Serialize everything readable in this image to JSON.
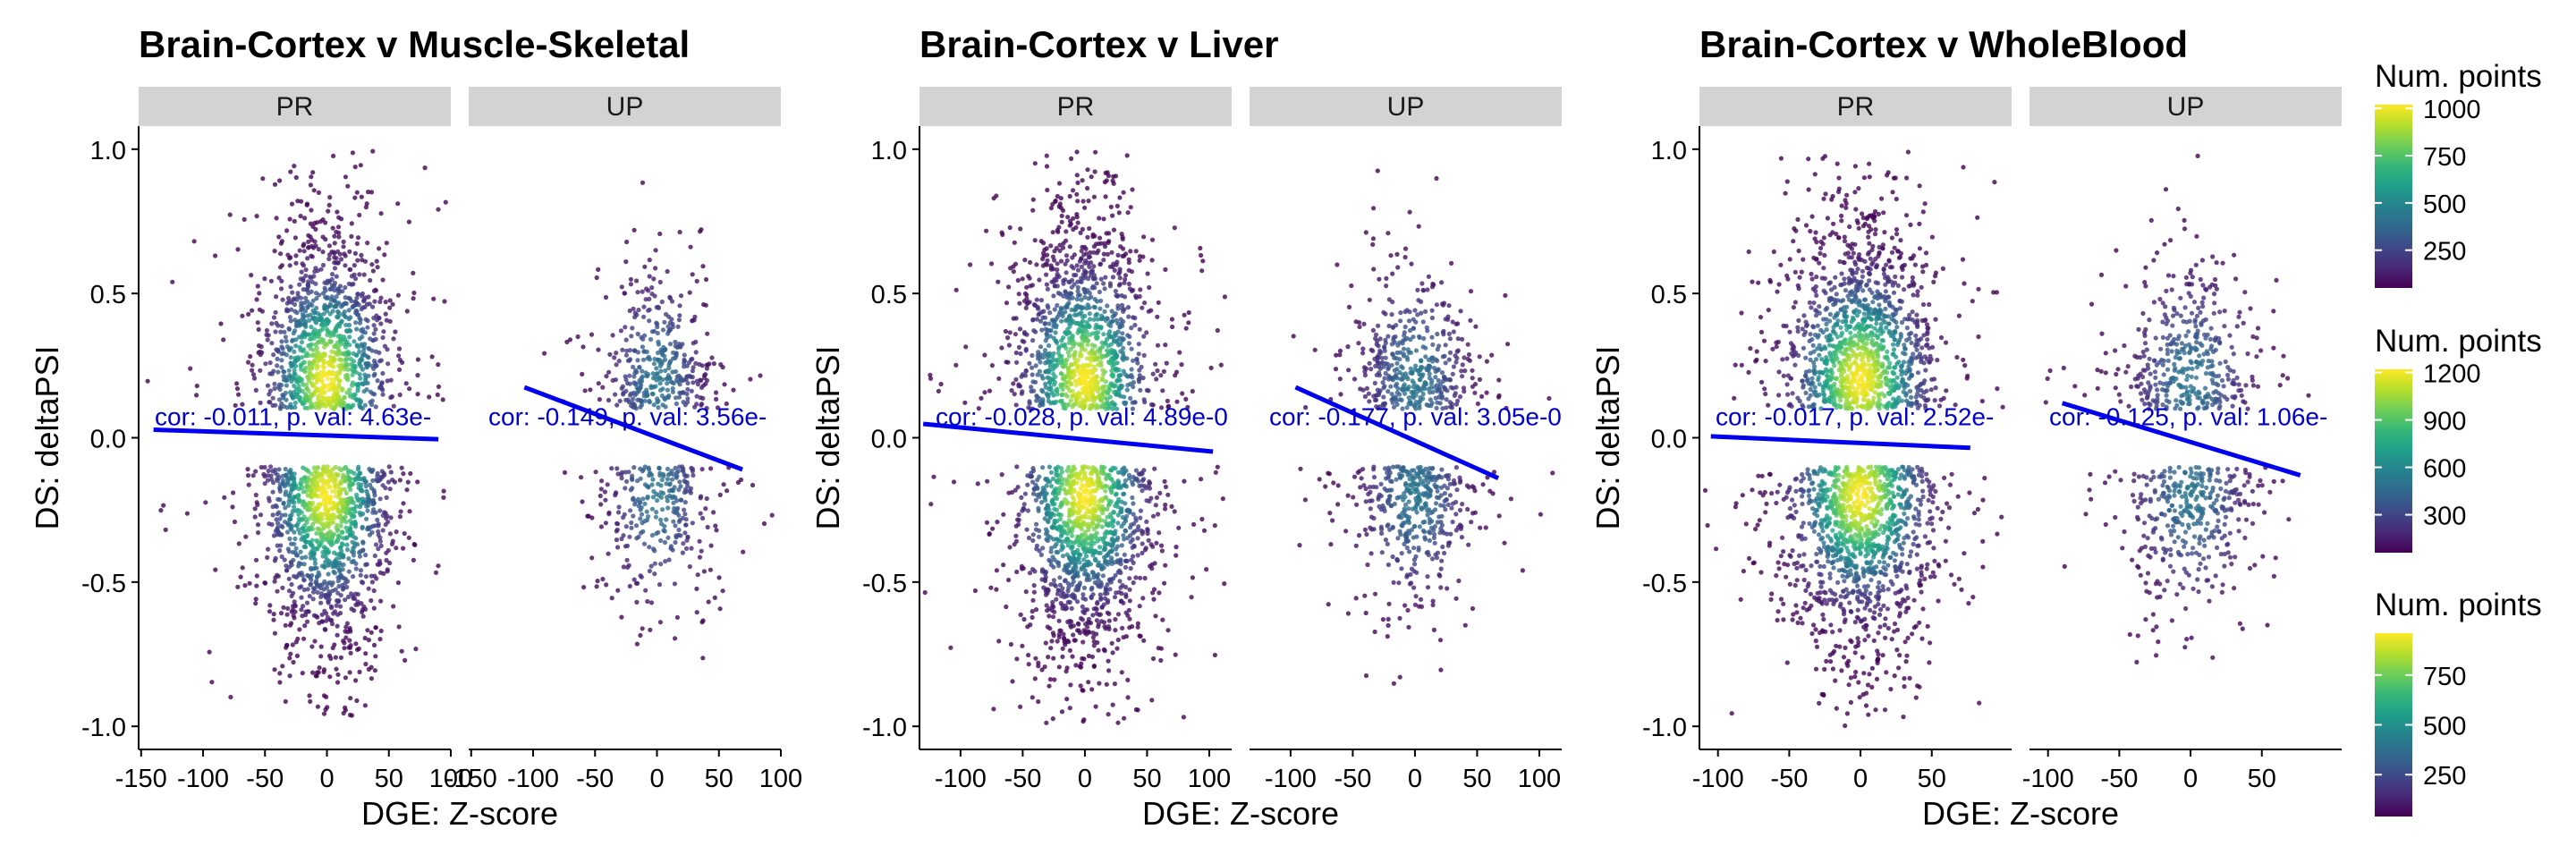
{
  "chart_data": [
    {
      "type": "scatter",
      "title": "Brain-Cortex v Muscle-Skeletal",
      "xlabel": "DGE: Z-score",
      "ylabel": "DS: deltaPSI",
      "ylim": [
        -1.08,
        1.08
      ],
      "yticks": [
        -1.0,
        -0.5,
        0.0,
        0.5,
        1.0
      ],
      "ytick_labels": [
        "-1.0",
        "-0.5",
        "0.0",
        "0.5",
        "1.0"
      ],
      "legend": {
        "title": "Num. points",
        "ticks": [
          250,
          500,
          750,
          1000
        ],
        "range": [
          50,
          1020
        ]
      },
      "panels": [
        {
          "strip": "PR",
          "xlim": [
            -152,
            100
          ],
          "xticks": [
            -150,
            -100,
            -50,
            0,
            50,
            100
          ],
          "xtick_labels": [
            "-150",
            "-100",
            "-50",
            "0",
            "50",
            "100"
          ],
          "cloud_sd_x": 25,
          "n_points": 2300,
          "fit": {
            "x": [
              -140,
              90
            ],
            "y": [
              0.028,
              -0.005
            ]
          },
          "annotation": "cor: -0.011, p. val: 4.63e-"
        },
        {
          "strip": "UP",
          "xlim": [
            -152,
            100
          ],
          "xticks": [
            -150,
            -100,
            -50,
            0,
            50,
            100
          ],
          "xtick_labels": [
            "-150",
            "-100",
            "-50",
            "0",
            "50",
            "100"
          ],
          "cloud_sd_x": 22,
          "n_points": 700,
          "fit": {
            "x": [
              -107,
              69
            ],
            "y": [
              0.175,
              -0.11
            ]
          },
          "annotation": "cor: -0.149, p. val: 3.56e-"
        }
      ]
    },
    {
      "type": "scatter",
      "title": "Brain-Cortex v Liver",
      "xlabel": "DGE: Z-score",
      "ylabel": "DS: deltaPSI",
      "ylim": [
        -1.08,
        1.08
      ],
      "yticks": [
        -1.0,
        -0.5,
        0.0,
        0.5,
        1.0
      ],
      "ytick_labels": [
        "-1.0",
        "-0.5",
        "0.0",
        "0.5",
        "1.0"
      ],
      "legend": {
        "title": "Num. points",
        "ticks": [
          300,
          600,
          900,
          1200
        ],
        "range": [
          60,
          1220
        ]
      },
      "panels": [
        {
          "strip": "PR",
          "xlim": [
            -133,
            118
          ],
          "xticks": [
            -100,
            -50,
            0,
            50,
            100
          ],
          "xtick_labels": [
            "-100",
            "-50",
            "0",
            "50",
            "100"
          ],
          "cloud_sd_x": 26,
          "n_points": 2400,
          "fit": {
            "x": [
              -130,
              103
            ],
            "y": [
              0.048,
              -0.048
            ]
          },
          "annotation": "cor: -0.028, p. val: 4.89e-0"
        },
        {
          "strip": "UP",
          "xlim": [
            -133,
            118
          ],
          "xticks": [
            -100,
            -50,
            0,
            50,
            100
          ],
          "xtick_labels": [
            "-100",
            "-50",
            "0",
            "50",
            "100"
          ],
          "cloud_sd_x": 24,
          "n_points": 900,
          "fit": {
            "x": [
              -96,
              67
            ],
            "y": [
              0.175,
              -0.14
            ]
          },
          "annotation": "cor: -0.177, p. val: 3.05e-0"
        }
      ]
    },
    {
      "type": "scatter",
      "title": "Brain-Cortex v WholeBlood",
      "xlabel": "DGE: Z-score",
      "ylabel": "DS: deltaPSI",
      "ylim": [
        -1.08,
        1.08
      ],
      "yticks": [
        -1.0,
        -0.5,
        0.0,
        0.5,
        1.0
      ],
      "ytick_labels": [
        "-1.0",
        "-0.5",
        "0.0",
        "0.5",
        "1.0"
      ],
      "legend": {
        "title": "Num. points",
        "ticks": [
          250,
          500,
          750
        ],
        "range": [
          40,
          960
        ]
      },
      "panels": [
        {
          "strip": "PR",
          "xlim": [
            -113,
            106
          ],
          "xticks": [
            -100,
            -50,
            0,
            50
          ],
          "xtick_labels": [
            "-100",
            "-50",
            "0",
            "50"
          ],
          "cloud_sd_x": 25,
          "n_points": 2500,
          "fit": {
            "x": [
              -105,
              77
            ],
            "y": [
              0.005,
              -0.035
            ]
          },
          "annotation": "cor: -0.017, p. val: 2.52e-"
        },
        {
          "strip": "UP",
          "xlim": [
            -113,
            106
          ],
          "xticks": [
            -100,
            -50,
            0,
            50
          ],
          "xtick_labels": [
            "-100",
            "-50",
            "0",
            "50"
          ],
          "cloud_sd_x": 23,
          "n_points": 800,
          "fit": {
            "x": [
              -90,
              77
            ],
            "y": [
              0.12,
              -0.13
            ]
          },
          "annotation": "cor: -0.125, p. val: 1.06e-"
        }
      ]
    }
  ]
}
